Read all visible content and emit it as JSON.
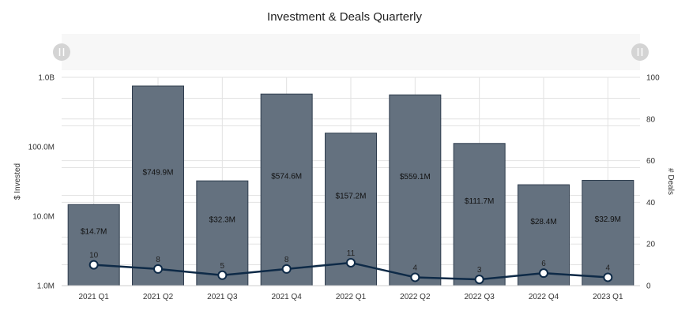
{
  "chart_data": {
    "type": "bar",
    "title": "Investment & Deals Quarterly",
    "categories": [
      "2021 Q1",
      "2021 Q2",
      "2021 Q3",
      "2021 Q4",
      "2022 Q1",
      "2022 Q2",
      "2022 Q3",
      "2022 Q4",
      "2023 Q1"
    ],
    "y_left": {
      "label": "$ Invested",
      "scale": "log",
      "range": [
        1000000,
        1000000000
      ],
      "ticks": [
        1000000,
        10000000,
        100000000,
        1000000000
      ],
      "tick_labels": [
        "1.0M",
        "10.0M",
        "100.0M",
        "1.0B"
      ]
    },
    "y_right": {
      "label": "# Deals",
      "scale": "linear",
      "range": [
        0,
        100
      ],
      "ticks": [
        0,
        20,
        40,
        60,
        80,
        100
      ],
      "tick_labels": [
        "0",
        "20",
        "40",
        "60",
        "80",
        "100"
      ]
    },
    "series": [
      {
        "type": "bar",
        "axis": "left",
        "color": "#64717f",
        "edge_color": "#2f3d4e",
        "values": [
          14700000,
          749900000,
          32300000,
          574600000,
          157200000,
          559100000,
          111700000,
          28400000,
          32900000
        ],
        "labels": [
          "$14.7M",
          "$749.9M",
          "$32.3M",
          "$574.6M",
          "$157.2M",
          "$559.1M",
          "$111.7M",
          "$28.4M",
          "$32.9M"
        ]
      },
      {
        "type": "line",
        "axis": "right",
        "color": "#0e2a47",
        "values": [
          10,
          8,
          5,
          8,
          11,
          4,
          3,
          6,
          4
        ],
        "labels": [
          "10",
          "8",
          "5",
          "8",
          "11",
          "4",
          "3",
          "6",
          "4"
        ]
      }
    ],
    "grid": true,
    "legend": "none",
    "zoom_slider": {
      "handle_icon": "grip-icon"
    }
  }
}
